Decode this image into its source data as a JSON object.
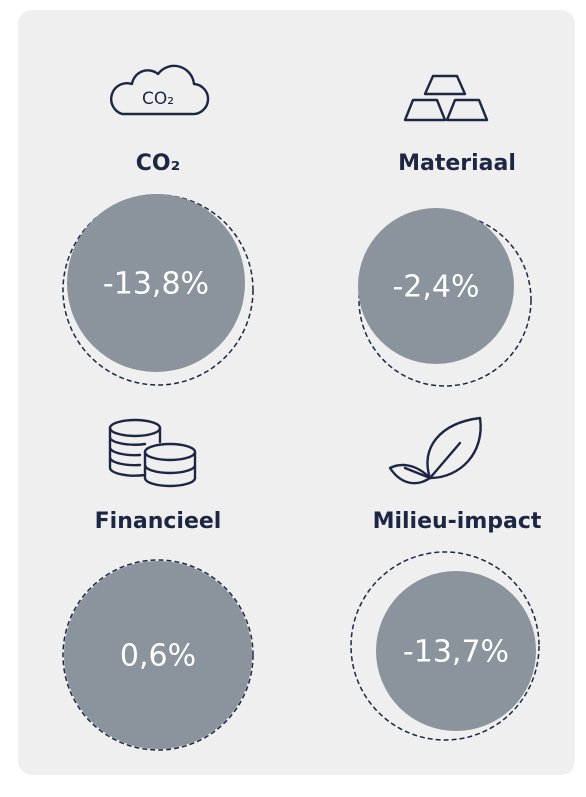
{
  "items": [
    {
      "label": "CO₂",
      "icon_text": "CO₂",
      "value": "-13,8%"
    },
    {
      "label": "Materiaal",
      "value": "-2,4%"
    },
    {
      "label": "Financieel",
      "value": "0,6%"
    },
    {
      "label": "Milieu-impact",
      "value": "-13,7%"
    }
  ]
}
